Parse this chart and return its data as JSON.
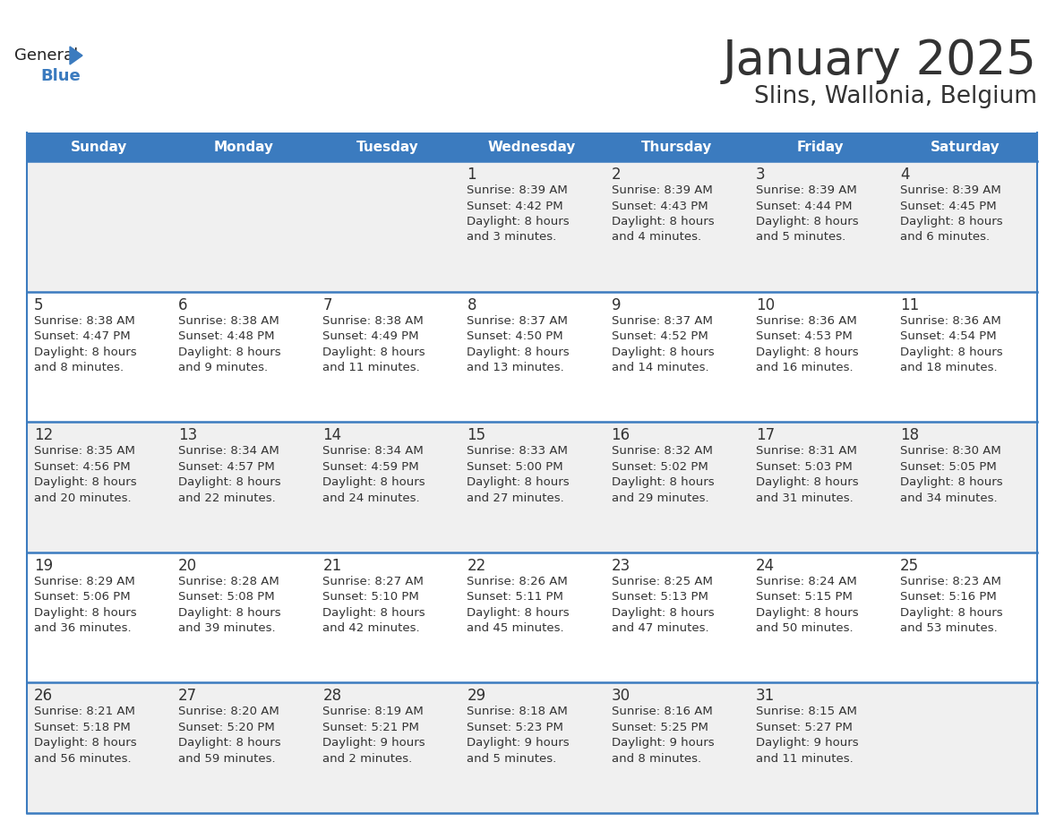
{
  "title": "January 2025",
  "subtitle": "Slins, Wallonia, Belgium",
  "days_of_week": [
    "Sunday",
    "Monday",
    "Tuesday",
    "Wednesday",
    "Thursday",
    "Friday",
    "Saturday"
  ],
  "header_bg": "#3B7BBF",
  "header_text": "#FFFFFF",
  "cell_bg_light": "#F0F0F0",
  "cell_bg_white": "#FFFFFF",
  "divider_color": "#3B7BBF",
  "text_color": "#333333",
  "title_color": "#333333",
  "logo_general_color": "#222222",
  "logo_blue_color": "#3B7BBF",
  "calendar_data": [
    [
      {
        "day": null,
        "sunrise": null,
        "sunset": null,
        "daylight_line1": null,
        "daylight_line2": null
      },
      {
        "day": null,
        "sunrise": null,
        "sunset": null,
        "daylight_line1": null,
        "daylight_line2": null
      },
      {
        "day": null,
        "sunrise": null,
        "sunset": null,
        "daylight_line1": null,
        "daylight_line2": null
      },
      {
        "day": "1",
        "sunrise": "Sunrise: 8:39 AM",
        "sunset": "Sunset: 4:42 PM",
        "daylight_line1": "Daylight: 8 hours",
        "daylight_line2": "and 3 minutes."
      },
      {
        "day": "2",
        "sunrise": "Sunrise: 8:39 AM",
        "sunset": "Sunset: 4:43 PM",
        "daylight_line1": "Daylight: 8 hours",
        "daylight_line2": "and 4 minutes."
      },
      {
        "day": "3",
        "sunrise": "Sunrise: 8:39 AM",
        "sunset": "Sunset: 4:44 PM",
        "daylight_line1": "Daylight: 8 hours",
        "daylight_line2": "and 5 minutes."
      },
      {
        "day": "4",
        "sunrise": "Sunrise: 8:39 AM",
        "sunset": "Sunset: 4:45 PM",
        "daylight_line1": "Daylight: 8 hours",
        "daylight_line2": "and 6 minutes."
      }
    ],
    [
      {
        "day": "5",
        "sunrise": "Sunrise: 8:38 AM",
        "sunset": "Sunset: 4:47 PM",
        "daylight_line1": "Daylight: 8 hours",
        "daylight_line2": "and 8 minutes."
      },
      {
        "day": "6",
        "sunrise": "Sunrise: 8:38 AM",
        "sunset": "Sunset: 4:48 PM",
        "daylight_line1": "Daylight: 8 hours",
        "daylight_line2": "and 9 minutes."
      },
      {
        "day": "7",
        "sunrise": "Sunrise: 8:38 AM",
        "sunset": "Sunset: 4:49 PM",
        "daylight_line1": "Daylight: 8 hours",
        "daylight_line2": "and 11 minutes."
      },
      {
        "day": "8",
        "sunrise": "Sunrise: 8:37 AM",
        "sunset": "Sunset: 4:50 PM",
        "daylight_line1": "Daylight: 8 hours",
        "daylight_line2": "and 13 minutes."
      },
      {
        "day": "9",
        "sunrise": "Sunrise: 8:37 AM",
        "sunset": "Sunset: 4:52 PM",
        "daylight_line1": "Daylight: 8 hours",
        "daylight_line2": "and 14 minutes."
      },
      {
        "day": "10",
        "sunrise": "Sunrise: 8:36 AM",
        "sunset": "Sunset: 4:53 PM",
        "daylight_line1": "Daylight: 8 hours",
        "daylight_line2": "and 16 minutes."
      },
      {
        "day": "11",
        "sunrise": "Sunrise: 8:36 AM",
        "sunset": "Sunset: 4:54 PM",
        "daylight_line1": "Daylight: 8 hours",
        "daylight_line2": "and 18 minutes."
      }
    ],
    [
      {
        "day": "12",
        "sunrise": "Sunrise: 8:35 AM",
        "sunset": "Sunset: 4:56 PM",
        "daylight_line1": "Daylight: 8 hours",
        "daylight_line2": "and 20 minutes."
      },
      {
        "day": "13",
        "sunrise": "Sunrise: 8:34 AM",
        "sunset": "Sunset: 4:57 PM",
        "daylight_line1": "Daylight: 8 hours",
        "daylight_line2": "and 22 minutes."
      },
      {
        "day": "14",
        "sunrise": "Sunrise: 8:34 AM",
        "sunset": "Sunset: 4:59 PM",
        "daylight_line1": "Daylight: 8 hours",
        "daylight_line2": "and 24 minutes."
      },
      {
        "day": "15",
        "sunrise": "Sunrise: 8:33 AM",
        "sunset": "Sunset: 5:00 PM",
        "daylight_line1": "Daylight: 8 hours",
        "daylight_line2": "and 27 minutes."
      },
      {
        "day": "16",
        "sunrise": "Sunrise: 8:32 AM",
        "sunset": "Sunset: 5:02 PM",
        "daylight_line1": "Daylight: 8 hours",
        "daylight_line2": "and 29 minutes."
      },
      {
        "day": "17",
        "sunrise": "Sunrise: 8:31 AM",
        "sunset": "Sunset: 5:03 PM",
        "daylight_line1": "Daylight: 8 hours",
        "daylight_line2": "and 31 minutes."
      },
      {
        "day": "18",
        "sunrise": "Sunrise: 8:30 AM",
        "sunset": "Sunset: 5:05 PM",
        "daylight_line1": "Daylight: 8 hours",
        "daylight_line2": "and 34 minutes."
      }
    ],
    [
      {
        "day": "19",
        "sunrise": "Sunrise: 8:29 AM",
        "sunset": "Sunset: 5:06 PM",
        "daylight_line1": "Daylight: 8 hours",
        "daylight_line2": "and 36 minutes."
      },
      {
        "day": "20",
        "sunrise": "Sunrise: 8:28 AM",
        "sunset": "Sunset: 5:08 PM",
        "daylight_line1": "Daylight: 8 hours",
        "daylight_line2": "and 39 minutes."
      },
      {
        "day": "21",
        "sunrise": "Sunrise: 8:27 AM",
        "sunset": "Sunset: 5:10 PM",
        "daylight_line1": "Daylight: 8 hours",
        "daylight_line2": "and 42 minutes."
      },
      {
        "day": "22",
        "sunrise": "Sunrise: 8:26 AM",
        "sunset": "Sunset: 5:11 PM",
        "daylight_line1": "Daylight: 8 hours",
        "daylight_line2": "and 45 minutes."
      },
      {
        "day": "23",
        "sunrise": "Sunrise: 8:25 AM",
        "sunset": "Sunset: 5:13 PM",
        "daylight_line1": "Daylight: 8 hours",
        "daylight_line2": "and 47 minutes."
      },
      {
        "day": "24",
        "sunrise": "Sunrise: 8:24 AM",
        "sunset": "Sunset: 5:15 PM",
        "daylight_line1": "Daylight: 8 hours",
        "daylight_line2": "and 50 minutes."
      },
      {
        "day": "25",
        "sunrise": "Sunrise: 8:23 AM",
        "sunset": "Sunset: 5:16 PM",
        "daylight_line1": "Daylight: 8 hours",
        "daylight_line2": "and 53 minutes."
      }
    ],
    [
      {
        "day": "26",
        "sunrise": "Sunrise: 8:21 AM",
        "sunset": "Sunset: 5:18 PM",
        "daylight_line1": "Daylight: 8 hours",
        "daylight_line2": "and 56 minutes."
      },
      {
        "day": "27",
        "sunrise": "Sunrise: 8:20 AM",
        "sunset": "Sunset: 5:20 PM",
        "daylight_line1": "Daylight: 8 hours",
        "daylight_line2": "and 59 minutes."
      },
      {
        "day": "28",
        "sunrise": "Sunrise: 8:19 AM",
        "sunset": "Sunset: 5:21 PM",
        "daylight_line1": "Daylight: 9 hours",
        "daylight_line2": "and 2 minutes."
      },
      {
        "day": "29",
        "sunrise": "Sunrise: 8:18 AM",
        "sunset": "Sunset: 5:23 PM",
        "daylight_line1": "Daylight: 9 hours",
        "daylight_line2": "and 5 minutes."
      },
      {
        "day": "30",
        "sunrise": "Sunrise: 8:16 AM",
        "sunset": "Sunset: 5:25 PM",
        "daylight_line1": "Daylight: 9 hours",
        "daylight_line2": "and 8 minutes."
      },
      {
        "day": "31",
        "sunrise": "Sunrise: 8:15 AM",
        "sunset": "Sunset: 5:27 PM",
        "daylight_line1": "Daylight: 9 hours",
        "daylight_line2": "and 11 minutes."
      },
      {
        "day": null,
        "sunrise": null,
        "sunset": null,
        "daylight_line1": null,
        "daylight_line2": null
      }
    ]
  ]
}
